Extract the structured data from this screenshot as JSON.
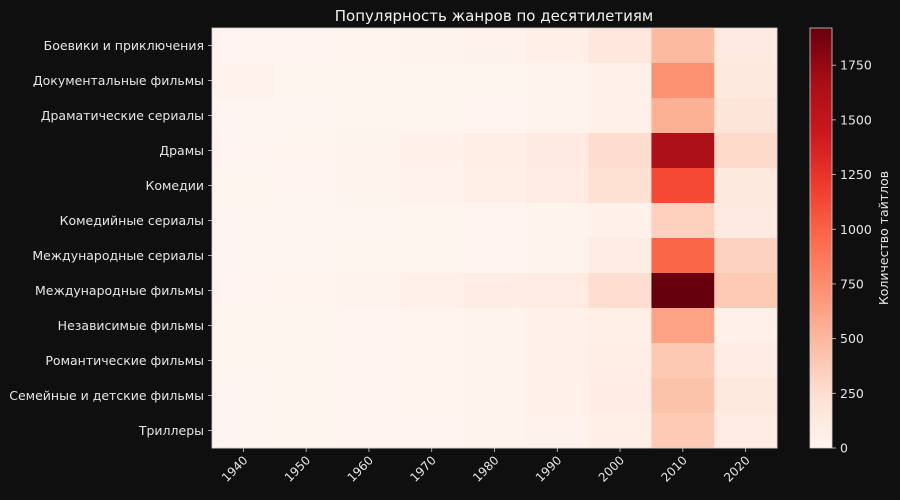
{
  "chart_data": {
    "type": "heatmap",
    "title": "Популярность жанров по десятилетиям",
    "xlabel": "",
    "ylabel": "",
    "x_categories": [
      "1940",
      "1950",
      "1960",
      "1970",
      "1980",
      "1990",
      "2000",
      "2010",
      "2020"
    ],
    "y_categories": [
      "Боевики и приключения",
      "Документальные фильмы",
      "Драматические сериалы",
      "Драмы",
      "Комедии",
      "Комедийные сериалы",
      "Международные сериалы",
      "Международные фильмы",
      "Независимые фильмы",
      "Романтические фильмы",
      "Семейные и детские фильмы",
      "Триллеры"
    ],
    "values": [
      [
        10,
        10,
        15,
        25,
        35,
        70,
        160,
        480,
        130
      ],
      [
        30,
        5,
        5,
        5,
        5,
        20,
        50,
        720,
        140
      ],
      [
        0,
        0,
        5,
        5,
        10,
        20,
        50,
        540,
        180
      ],
      [
        10,
        15,
        25,
        40,
        80,
        130,
        260,
        1630,
        280
      ],
      [
        5,
        10,
        20,
        35,
        70,
        110,
        230,
        1130,
        140
      ],
      [
        0,
        0,
        0,
        5,
        10,
        20,
        40,
        340,
        130
      ],
      [
        0,
        0,
        5,
        5,
        10,
        20,
        90,
        980,
        330
      ],
      [
        10,
        15,
        25,
        50,
        90,
        120,
        250,
        1920,
        380
      ],
      [
        5,
        5,
        10,
        15,
        25,
        40,
        70,
        620,
        60
      ],
      [
        5,
        5,
        10,
        15,
        20,
        40,
        80,
        390,
        100
      ],
      [
        0,
        5,
        10,
        15,
        20,
        40,
        90,
        430,
        140
      ],
      [
        0,
        5,
        10,
        10,
        20,
        35,
        70,
        380,
        120
      ]
    ],
    "colorbar": {
      "label": "Количество тайтлов",
      "min": 0,
      "max": 1920,
      "ticks": [
        0,
        250,
        500,
        750,
        1000,
        1250,
        1500,
        1750
      ],
      "colormap": "Reds"
    },
    "grid": false
  },
  "colors": {
    "background": "#0f0f0f",
    "text": "#e6e6e6"
  }
}
